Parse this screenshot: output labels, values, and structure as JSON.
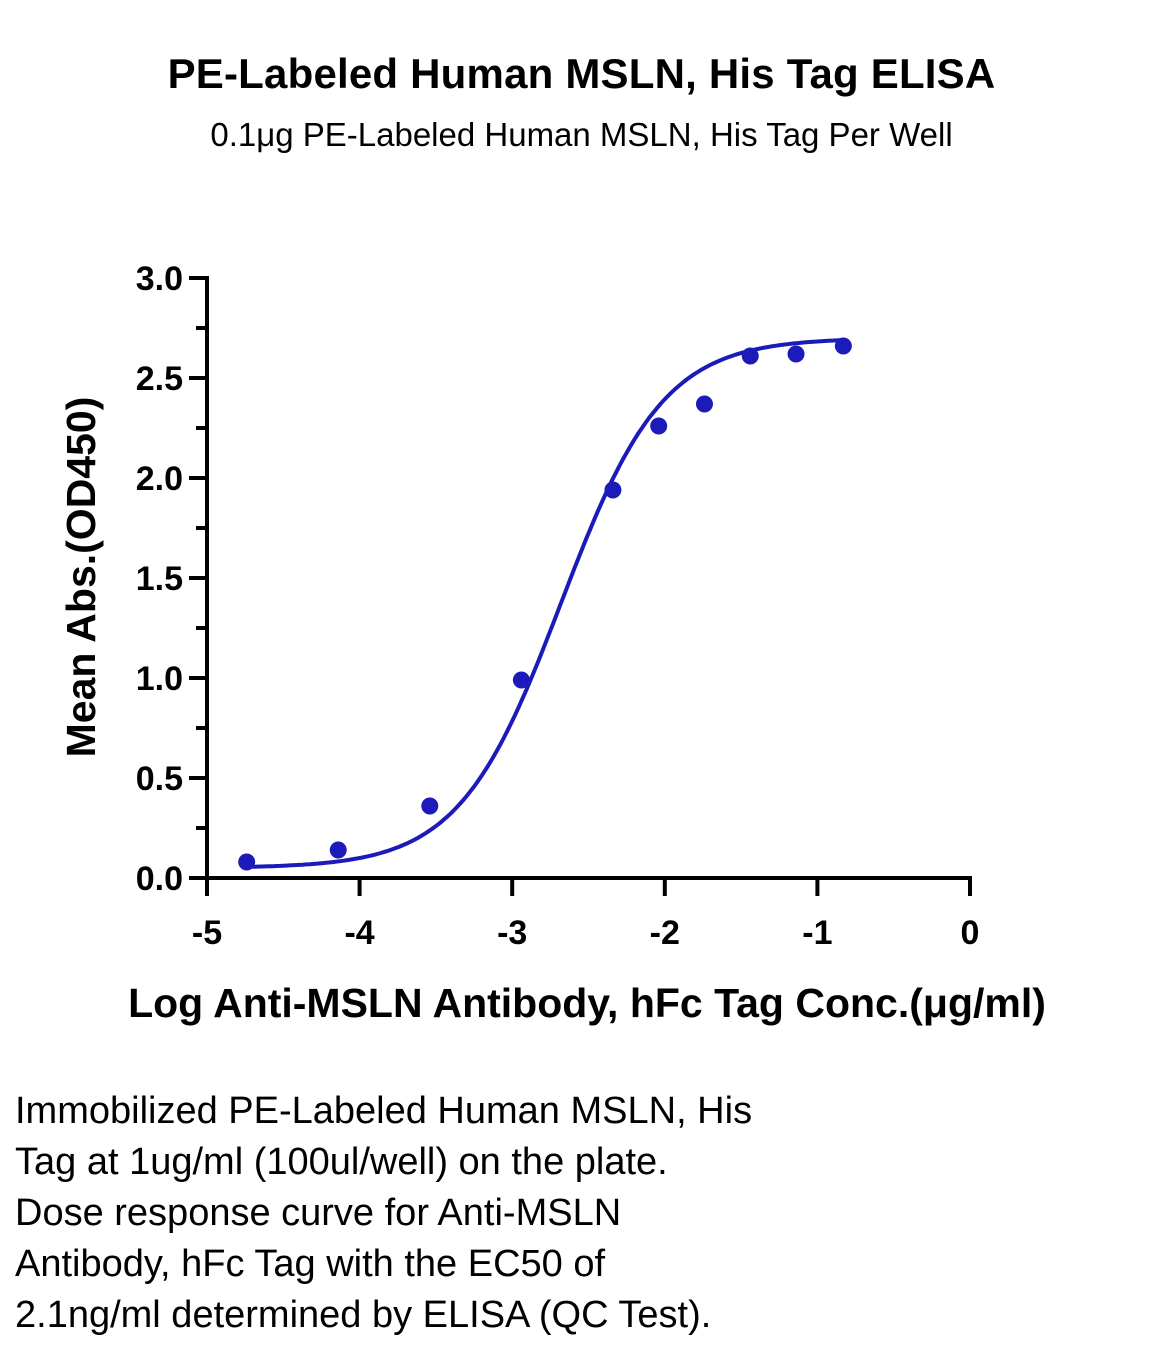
{
  "chart_data": {
    "type": "scatter",
    "title": "PE-Labeled Human MSLN, His Tag ELISA",
    "subtitle": "0.1μg PE-Labeled Human MSLN, His Tag Per Well",
    "xlabel": "Log Anti-MSLN Antibody, hFc Tag Conc.(μg/ml)",
    "ylabel": "Mean Abs.(OD450)",
    "xlim": [
      -5,
      0
    ],
    "ylim": [
      0,
      3.0
    ],
    "x_ticks": [
      "-5",
      "-4",
      "-3",
      "-2",
      "-1",
      "0"
    ],
    "y_ticks": [
      "0.0",
      "0.5",
      "1.0",
      "1.5",
      "2.0",
      "2.5",
      "3.0"
    ],
    "grid": false,
    "series": [
      {
        "x": [
          -4.74,
          -4.14,
          -3.54,
          -2.94,
          -2.34,
          -2.04,
          -1.74,
          -1.44,
          -1.14,
          -0.83
        ],
        "y": [
          0.08,
          0.14,
          0.36,
          0.99,
          1.94,
          2.26,
          2.37,
          2.61,
          2.62,
          2.66
        ],
        "fit": "4PL sigmoid",
        "fit_params": {
          "bottom": 0.05,
          "top": 2.7,
          "logEC50": -2.68,
          "hill": 1.3
        }
      }
    ],
    "colors": {
      "series": "#1c1ab8",
      "axis": "#000000"
    }
  },
  "caption": [
    "Immobilized PE-Labeled Human MSLN, His",
    "Tag at 1ug/ml (100ul/well) on the plate.",
    "Dose response curve for Anti-MSLN",
    "Antibody, hFc Tag with the EC50 of",
    "2.1ng/ml determined by ELISA (QC Test)."
  ]
}
